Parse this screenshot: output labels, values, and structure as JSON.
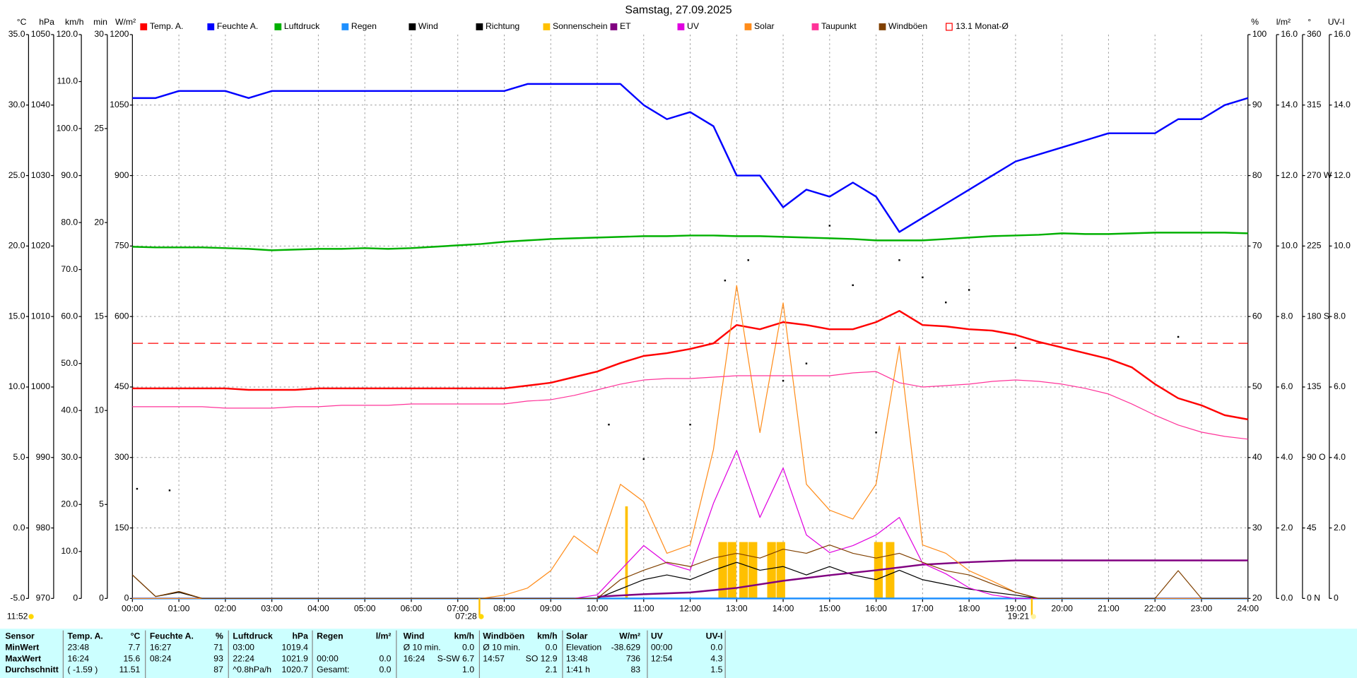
{
  "chart_data": {
    "type": "line",
    "title": "Samstag, 27.09.2025",
    "xlim": [
      0,
      24
    ],
    "xticks": [
      {
        "value": 0,
        "label": "00:00"
      },
      {
        "value": 1,
        "label": "01:00"
      },
      {
        "value": 2,
        "label": "02:00"
      },
      {
        "value": 3,
        "label": "03:00"
      },
      {
        "value": 4,
        "label": "04:00"
      },
      {
        "value": 5,
        "label": "05:00"
      },
      {
        "value": 6,
        "label": "06:00"
      },
      {
        "value": 7,
        "label": "07:00"
      },
      {
        "value": 8,
        "label": "08:00"
      },
      {
        "value": 9,
        "label": "09:00"
      },
      {
        "value": 10,
        "label": "10:00"
      },
      {
        "value": 11,
        "label": "11:00"
      },
      {
        "value": 12,
        "label": "12:00"
      },
      {
        "value": 13,
        "label": "13:00"
      },
      {
        "value": 14,
        "label": "14:00"
      },
      {
        "value": 15,
        "label": "15:00"
      },
      {
        "value": 16,
        "label": "16:00"
      },
      {
        "value": 17,
        "label": "17:00"
      },
      {
        "value": 18,
        "label": "18:00"
      },
      {
        "value": 19,
        "label": "19:00"
      },
      {
        "value": 20,
        "label": "20:00"
      },
      {
        "value": 21,
        "label": "21:00"
      },
      {
        "value": 22,
        "label": "22:00"
      },
      {
        "value": 23,
        "label": "23:00"
      },
      {
        "value": 24,
        "label": "24:00"
      }
    ],
    "grid": true,
    "axes": [
      {
        "label": "°C",
        "color": "#ff0000",
        "ylim": [
          -5,
          35
        ],
        "yticks": [
          {
            "value": -5,
            "label": "-5.0"
          },
          {
            "value": 0,
            "label": "0.0"
          },
          {
            "value": 5,
            "label": "5.0"
          },
          {
            "value": 10,
            "label": "10.0"
          },
          {
            "value": 15,
            "label": "15.0"
          },
          {
            "value": 20,
            "label": "20.0"
          },
          {
            "value": 25,
            "label": "25.0"
          },
          {
            "value": 30,
            "label": "30.0"
          },
          {
            "value": 35,
            "label": "35.0"
          }
        ]
      },
      {
        "label": "hPa",
        "color": "#00b000",
        "ylim": [
          970,
          1050
        ],
        "yticks": [
          970,
          980,
          990,
          1000,
          1010,
          1020,
          1030,
          1040,
          1050
        ]
      },
      {
        "label": "km/h",
        "color": "#000000",
        "ylim": [
          0,
          120
        ],
        "yticks": [
          0,
          {
            "value": 10,
            "label": "10.0"
          },
          {
            "value": 20,
            "label": "20.0"
          },
          {
            "value": 30,
            "label": "30.0"
          },
          {
            "value": 40,
            "label": "40.0"
          },
          {
            "value": 50,
            "label": "50.0"
          },
          {
            "value": 60,
            "label": "60.0"
          },
          {
            "value": 70,
            "label": "70.0"
          },
          {
            "value": 80,
            "label": "80.0"
          },
          {
            "value": 90,
            "label": "90.0"
          },
          {
            "value": 100,
            "label": "100.0"
          },
          {
            "value": 110,
            "label": "110.0"
          },
          {
            "value": 120,
            "label": "120.0"
          }
        ]
      },
      {
        "label": "min",
        "color": "#ff8c1a",
        "ylim": [
          0,
          30
        ],
        "yticks": [
          0,
          5,
          10,
          15,
          20,
          25,
          30
        ]
      },
      {
        "label": "W/m²",
        "color": "#ff8c1a",
        "ylim": [
          0,
          1200
        ],
        "yticks": [
          0,
          150,
          300,
          450,
          600,
          750,
          900,
          1050,
          1200
        ]
      },
      {
        "label": "%",
        "color": "#0000ff",
        "ylim": [
          20,
          100
        ],
        "yticks": [
          20,
          30,
          40,
          50,
          60,
          70,
          80,
          90,
          100
        ]
      },
      {
        "label": "l/m²",
        "color": "#1e90ff",
        "ylim": [
          0,
          16
        ],
        "yticks": [
          {
            "value": 0,
            "label": "0.0"
          },
          {
            "value": 2,
            "label": "2.0"
          },
          {
            "value": 4,
            "label": "4.0"
          },
          {
            "value": 6,
            "label": "6.0"
          },
          {
            "value": 8,
            "label": "8.0"
          },
          {
            "value": 10,
            "label": "10.0"
          },
          {
            "value": 12,
            "label": "12.0"
          },
          {
            "value": 14,
            "label": "14.0"
          },
          {
            "value": 16,
            "label": "16.0"
          }
        ]
      },
      {
        "label": "°",
        "color": "#000000",
        "ylim": [
          0,
          360
        ],
        "yticks": [
          {
            "value": 0,
            "label": "0 N"
          },
          45,
          {
            "value": 90,
            "label": "90 O"
          },
          135,
          {
            "value": 180,
            "label": "180 S"
          },
          225,
          {
            "value": 270,
            "label": "270 W"
          },
          315,
          360
        ]
      },
      {
        "label": "UV-I",
        "color": "#ff00ff",
        "ylim": [
          0,
          16
        ],
        "yticks": [
          0,
          {
            "value": 2,
            "label": "2.0"
          },
          {
            "value": 4,
            "label": "4.0"
          },
          {
            "value": 6,
            "label": "6.0"
          },
          {
            "value": 8,
            "label": "8.0"
          },
          {
            "value": 10,
            "label": "10.0"
          },
          {
            "value": 12,
            "label": "12.0"
          },
          {
            "value": 14,
            "label": "14.0"
          },
          {
            "value": 16,
            "label": "16.0"
          }
        ]
      }
    ],
    "x": [
      0,
      0.5,
      1,
      1.5,
      2,
      2.5,
      3,
      3.5,
      4,
      4.5,
      5,
      5.5,
      6,
      6.5,
      7,
      7.5,
      8,
      8.5,
      9,
      9.5,
      10,
      10.5,
      11,
      11.5,
      12,
      12.5,
      13,
      13.5,
      14,
      14.5,
      15,
      15.5,
      16,
      16.5,
      17,
      17.5,
      18,
      18.5,
      19,
      19.5,
      20,
      20.5,
      21,
      21.5,
      22,
      22.5,
      23,
      23.5,
      24
    ],
    "series": [
      {
        "name": "Temp. A.",
        "color": "#ff0000",
        "axis": 0,
        "style": "line",
        "width": 2,
        "values": [
          9.9,
          9.9,
          9.9,
          9.9,
          9.9,
          9.8,
          9.8,
          9.8,
          9.9,
          9.9,
          9.9,
          9.9,
          9.9,
          9.9,
          9.9,
          9.9,
          9.9,
          10.1,
          10.3,
          10.7,
          11.1,
          11.7,
          12.2,
          12.4,
          12.7,
          13.1,
          14.4,
          14.1,
          14.6,
          14.4,
          14.1,
          14.1,
          14.6,
          15.4,
          14.4,
          14.3,
          14.1,
          14.0,
          13.7,
          13.2,
          12.8,
          12.4,
          12.0,
          11.4,
          10.2,
          9.2,
          8.7,
          8.0,
          7.7
        ]
      },
      {
        "name": "Feuchte A.",
        "color": "#0000ff",
        "axis": 5,
        "style": "line",
        "width": 2,
        "values": [
          91,
          91,
          92,
          92,
          92,
          91,
          92,
          92,
          92,
          92,
          92,
          92,
          92,
          92,
          92,
          92,
          92,
          93,
          93,
          93,
          93,
          93,
          90,
          88,
          89,
          87,
          80,
          80,
          75.5,
          78,
          77,
          79,
          77,
          72,
          74,
          76,
          78,
          80,
          82,
          83,
          84,
          85,
          86,
          86,
          86,
          88,
          88,
          90,
          91
        ]
      },
      {
        "name": "Luftdruck",
        "color": "#00b000",
        "axis": 1,
        "style": "line",
        "width": 2,
        "values": [
          1019.9,
          1019.8,
          1019.8,
          1019.8,
          1019.7,
          1019.6,
          1019.4,
          1019.5,
          1019.6,
          1019.6,
          1019.7,
          1019.6,
          1019.7,
          1019.9,
          1020.1,
          1020.3,
          1020.6,
          1020.8,
          1021.0,
          1021.1,
          1021.2,
          1021.3,
          1021.4,
          1021.4,
          1021.5,
          1021.5,
          1021.4,
          1021.4,
          1021.3,
          1021.2,
          1021.1,
          1021.0,
          1020.8,
          1020.8,
          1020.8,
          1021.0,
          1021.2,
          1021.4,
          1021.5,
          1021.6,
          1021.8,
          1021.7,
          1021.7,
          1021.8,
          1021.9,
          1021.9,
          1021.9,
          1021.9,
          1021.8
        ]
      },
      {
        "name": "Regen",
        "color": "#1e90ff",
        "axis": 6,
        "style": "line",
        "width": 2,
        "x": [
          0,
          24
        ],
        "values": [
          0,
          0
        ]
      },
      {
        "name": "Wind",
        "color": "#000000",
        "axis": 2,
        "style": "line",
        "width": 1,
        "values": [
          5,
          0.4,
          1.3,
          0,
          0,
          0,
          0,
          0,
          0,
          0,
          0,
          0,
          0,
          0,
          0,
          0,
          0,
          0,
          0,
          0,
          0,
          2,
          4,
          5,
          4,
          6,
          7.7,
          6,
          6.8,
          5,
          6.8,
          5,
          4,
          6,
          4,
          3,
          2,
          1.3,
          0.7,
          0,
          0,
          0,
          0,
          0,
          0,
          0,
          0,
          0,
          0
        ]
      },
      {
        "name": "Richtung",
        "color": "#000000",
        "axis": 7,
        "style": "dots",
        "x": [
          0.1,
          0.8,
          10.25,
          11.0,
          12.0,
          12.75,
          13.25,
          14.0,
          14.5,
          15.0,
          15.5,
          16.0,
          16.5,
          17.0,
          17.5,
          18.0,
          19.0,
          22.5
        ],
        "values": [
          70,
          69,
          111,
          89,
          111,
          203,
          216,
          139,
          150,
          238,
          200,
          106,
          216,
          205,
          189,
          197,
          160,
          167
        ]
      },
      {
        "name": "Sonnenschein",
        "color": "#ffc000",
        "axis": 3,
        "style": "bar",
        "x": [
          10.63,
          12.7,
          12.9,
          13.15,
          13.35,
          13.75,
          13.95,
          16.05,
          16.3
        ],
        "values": [
          4.9,
          3,
          3,
          3,
          3,
          3,
          3,
          3,
          3
        ]
      },
      {
        "name": "ET",
        "color": "#800080",
        "axis": 6,
        "style": "line",
        "width": 2,
        "x": [
          10,
          11,
          12,
          13,
          14,
          15,
          16,
          17,
          18,
          19,
          24
        ],
        "values": [
          0.05,
          0.12,
          0.17,
          0.3,
          0.5,
          0.66,
          0.8,
          0.96,
          1.03,
          1.08,
          1.08
        ]
      },
      {
        "name": "UV",
        "color": "#e000e0",
        "axis": 8,
        "style": "line",
        "width": 1,
        "values": [
          0,
          0,
          0,
          0,
          0,
          0,
          0,
          0,
          0,
          0,
          0,
          0,
          0,
          0,
          0,
          0,
          0,
          0,
          0,
          0,
          0.1,
          0.8,
          1.5,
          1.0,
          0.8,
          2.7,
          4.2,
          2.3,
          3.7,
          1.8,
          1.3,
          1.5,
          1.8,
          2.3,
          1.0,
          0.7,
          0.3,
          0.1,
          0,
          0,
          0,
          0,
          0,
          0,
          0,
          0,
          0,
          0,
          0
        ]
      },
      {
        "name": "Solar",
        "color": "#ff8c1a",
        "axis": 4,
        "style": "line",
        "width": 1,
        "values": [
          0,
          0,
          0,
          0,
          0,
          0,
          0,
          0,
          0,
          0,
          0,
          0,
          0,
          0,
          0,
          0,
          7,
          22,
          59,
          133,
          96,
          243,
          206,
          96,
          114,
          317,
          666,
          353,
          629,
          243,
          188,
          169,
          243,
          537,
          114,
          96,
          59,
          37,
          13,
          0,
          0,
          0,
          0,
          0,
          0,
          0,
          0,
          0,
          0
        ]
      },
      {
        "name": "Taupunkt",
        "color": "#ff3399",
        "axis": 0,
        "style": "line",
        "width": 1,
        "values": [
          8.6,
          8.6,
          8.6,
          8.6,
          8.5,
          8.5,
          8.5,
          8.6,
          8.6,
          8.7,
          8.7,
          8.7,
          8.8,
          8.8,
          8.8,
          8.8,
          8.8,
          9.0,
          9.1,
          9.4,
          9.8,
          10.2,
          10.5,
          10.6,
          10.6,
          10.7,
          10.8,
          10.8,
          10.8,
          10.8,
          10.8,
          11.0,
          11.1,
          10.3,
          10.0,
          10.1,
          10.2,
          10.4,
          10.5,
          10.4,
          10.2,
          9.9,
          9.5,
          8.8,
          8.0,
          7.3,
          6.8,
          6.5,
          6.3
        ]
      },
      {
        "name": "Windböen",
        "color": "#804000",
        "axis": 2,
        "style": "line",
        "width": 1,
        "values": [
          5,
          0.4,
          1.5,
          0,
          0,
          0,
          0,
          0,
          0,
          0,
          0,
          0,
          0,
          0,
          0,
          0,
          0,
          0,
          0,
          0,
          0,
          4,
          6,
          7.7,
          6.8,
          8.6,
          9.6,
          8.6,
          10.5,
          9.6,
          11.4,
          9.6,
          8.6,
          9.6,
          7.7,
          5.9,
          5,
          3.1,
          1.3,
          0,
          0,
          0,
          0,
          0,
          0,
          5.9,
          0,
          0,
          0
        ]
      },
      {
        "name": "13.1 Monat-Ø",
        "color": "#ff0000",
        "axis": 0,
        "style": "dashed",
        "width": 1,
        "x": [
          0,
          24
        ],
        "values": [
          13.1,
          13.1
        ]
      }
    ],
    "annotations": [
      {
        "text": "11:52"
      },
      {
        "text": "07:28",
        "x": 7.4667
      },
      {
        "text": "19:21",
        "x": 19.35
      }
    ]
  },
  "table": {
    "columns": [
      "Sensor",
      "Temp. A.",
      "°C",
      "Feuchte A.",
      "%",
      "Luftdruck",
      "hPa",
      "Regen",
      "l/m²",
      "Wind",
      "km/h",
      "Windböen",
      "km/h",
      "Solar",
      "W/m²",
      "UV",
      "UV-I"
    ],
    "rows": [
      [
        "MinWert",
        "23:48",
        "7.7",
        "16:27",
        "71",
        "03:00",
        "1019.4",
        null,
        null,
        "Ø 10 min.",
        "0.0",
        "Ø 10 min.",
        "0.0",
        "Elevation",
        "-38.629",
        "00:00",
        "0.0"
      ],
      [
        "MaxWert",
        "16:24",
        "15.6",
        "08:24",
        "93",
        "22:24",
        "1021.9",
        "00:00",
        "0.0",
        "16:24",
        "S-SW 6.7",
        "14:57",
        "SO 12.9",
        "13:48",
        "736",
        "12:54",
        "4.3"
      ],
      [
        "Durchschnitt",
        "( -1.59 )",
        "11.51",
        null,
        "87",
        "^0.8hPa/h",
        "1020.7",
        "Gesamt:",
        "0.0",
        null,
        "1.0",
        null,
        "2.1",
        "1:41 h",
        "83",
        null,
        "1.5"
      ]
    ]
  }
}
